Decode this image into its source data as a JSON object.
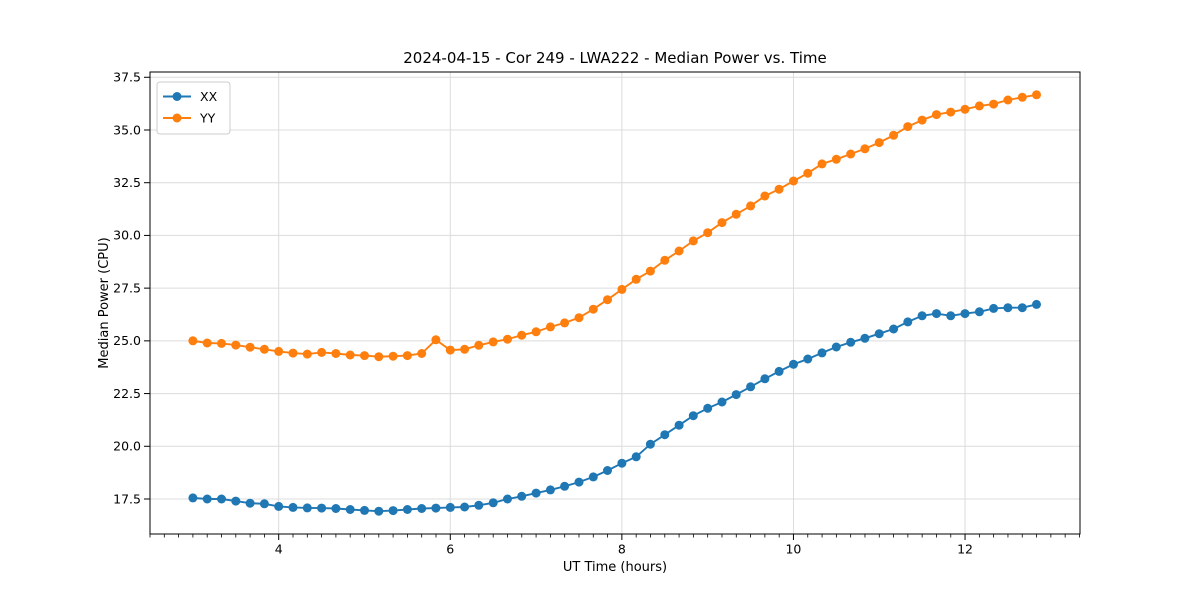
{
  "figure": {
    "background": "#ffffff",
    "text_color": "#000000",
    "grid_color": "#dcdcdc",
    "spine_color": "#000000"
  },
  "chart_data": {
    "type": "line",
    "title": "2024-04-15 - Cor 249 - LWA222 - Median Power vs. Time",
    "xlabel": "UT Time (hours)",
    "ylabel": "Median Power (CPU)",
    "xlim": [
      2.5,
      13.34
    ],
    "ylim": [
      15.84,
      37.75
    ],
    "xticks": [
      4,
      6,
      8,
      10,
      12
    ],
    "yticks": [
      17.5,
      20.0,
      22.5,
      25.0,
      27.5,
      30.0,
      32.5,
      35.0,
      37.5
    ],
    "minor_tick_step_x": 0.16667,
    "grid": true,
    "legend_position": "upper-left",
    "x": [
      3.0,
      3.167,
      3.333,
      3.5,
      3.667,
      3.833,
      4.0,
      4.167,
      4.333,
      4.5,
      4.667,
      4.833,
      5.0,
      5.167,
      5.333,
      5.5,
      5.667,
      5.833,
      6.0,
      6.167,
      6.333,
      6.5,
      6.667,
      6.833,
      7.0,
      7.167,
      7.333,
      7.5,
      7.667,
      7.833,
      8.0,
      8.167,
      8.333,
      8.5,
      8.667,
      8.833,
      9.0,
      9.167,
      9.333,
      9.5,
      9.667,
      9.833,
      10.0,
      10.167,
      10.333,
      10.5,
      10.667,
      10.833,
      11.0,
      11.167,
      11.333,
      11.5,
      11.667,
      11.833,
      12.0,
      12.167,
      12.333,
      12.5,
      12.667,
      12.833
    ],
    "series": [
      {
        "name": "XX",
        "color": "#1f77b4",
        "values": [
          17.55,
          17.5,
          17.5,
          17.4,
          17.3,
          17.27,
          17.15,
          17.1,
          17.08,
          17.07,
          17.05,
          17.0,
          16.96,
          16.92,
          16.95,
          17.0,
          17.05,
          17.07,
          17.1,
          17.12,
          17.2,
          17.32,
          17.5,
          17.63,
          17.78,
          17.93,
          18.1,
          18.3,
          18.55,
          18.85,
          19.2,
          19.5,
          20.1,
          20.55,
          21.0,
          21.45,
          21.8,
          22.1,
          22.45,
          22.82,
          23.2,
          23.55,
          23.89,
          24.14,
          24.43,
          24.71,
          24.93,
          25.12,
          25.34,
          25.56,
          25.9,
          26.19,
          26.29,
          26.19,
          26.29,
          26.38,
          26.54,
          26.57,
          26.57,
          26.73
        ]
      },
      {
        "name": "YY",
        "color": "#ff7f0e",
        "values": [
          25.0,
          24.9,
          24.88,
          24.8,
          24.7,
          24.6,
          24.5,
          24.42,
          24.37,
          24.45,
          24.4,
          24.33,
          24.3,
          24.25,
          24.27,
          24.3,
          24.4,
          25.05,
          24.56,
          24.6,
          24.79,
          24.95,
          25.08,
          25.27,
          25.43,
          25.66,
          25.85,
          26.1,
          26.5,
          26.95,
          27.44,
          27.92,
          28.31,
          28.82,
          29.26,
          29.74,
          30.13,
          30.61,
          31.0,
          31.4,
          31.87,
          32.19,
          32.58,
          32.95,
          33.39,
          33.61,
          33.86,
          34.11,
          34.4,
          34.75,
          35.16,
          35.47,
          35.73,
          35.85,
          35.98,
          36.14,
          36.23,
          36.42,
          36.55,
          36.67
        ]
      }
    ]
  }
}
